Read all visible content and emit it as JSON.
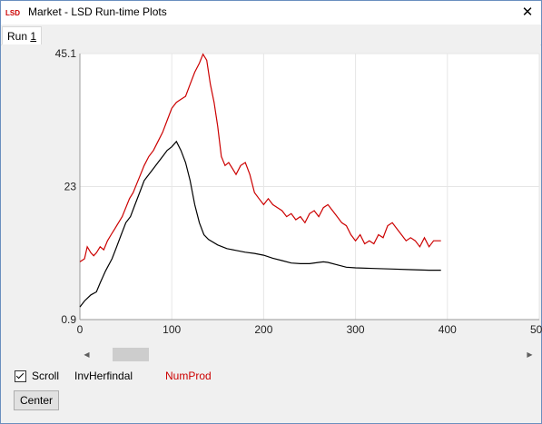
{
  "window": {
    "title": "Market - LSD Run-time Plots",
    "close_symbol": "✕"
  },
  "tabs": [
    {
      "label": "Run 1",
      "label_prefix": "Run ",
      "mnemonic": "1"
    }
  ],
  "controls": {
    "scroll_label": "Scroll",
    "scroll_checked": true,
    "center_label": "Center"
  },
  "legend": [
    {
      "name": "InvHerfindal",
      "color": "#000000"
    },
    {
      "name": "NumProd",
      "color": "#cc0000"
    }
  ],
  "colors": {
    "accent_red": "#cc0000",
    "line_black": "#000000",
    "grid": "#e6e6e6"
  },
  "chart_data": {
    "type": "line",
    "title": "",
    "xlabel": "",
    "ylabel": "",
    "xlim": [
      0,
      500
    ],
    "ylim": [
      0.9,
      45.1
    ],
    "xticks": [
      0,
      100,
      200,
      300,
      400,
      500
    ],
    "xtick_labels": [
      "0",
      "100",
      "200",
      "300",
      "400",
      "500"
    ],
    "yticks": [
      0.9,
      23,
      45.1
    ],
    "ytick_labels": [
      "0.9",
      "23",
      "45.1"
    ],
    "grid": true,
    "series": [
      {
        "name": "InvHerfindal",
        "color": "#000000",
        "points": [
          [
            0,
            3
          ],
          [
            5,
            4
          ],
          [
            12,
            5
          ],
          [
            18,
            5.5
          ],
          [
            22,
            7
          ],
          [
            28,
            9
          ],
          [
            35,
            11
          ],
          [
            40,
            13
          ],
          [
            45,
            15
          ],
          [
            50,
            17
          ],
          [
            55,
            18
          ],
          [
            60,
            20
          ],
          [
            65,
            22
          ],
          [
            70,
            24
          ],
          [
            75,
            25
          ],
          [
            80,
            26
          ],
          [
            85,
            27
          ],
          [
            90,
            28
          ],
          [
            95,
            29
          ],
          [
            100,
            29.6
          ],
          [
            105,
            30.5
          ],
          [
            110,
            29
          ],
          [
            115,
            27
          ],
          [
            120,
            24
          ],
          [
            125,
            20
          ],
          [
            130,
            17
          ],
          [
            135,
            15
          ],
          [
            140,
            14.2
          ],
          [
            150,
            13.3
          ],
          [
            160,
            12.7
          ],
          [
            170,
            12.4
          ],
          [
            180,
            12.1
          ],
          [
            190,
            11.9
          ],
          [
            200,
            11.6
          ],
          [
            210,
            11.1
          ],
          [
            220,
            10.7
          ],
          [
            230,
            10.3
          ],
          [
            240,
            10.2
          ],
          [
            250,
            10.2
          ],
          [
            260,
            10.4
          ],
          [
            265,
            10.5
          ],
          [
            270,
            10.4
          ],
          [
            280,
            10
          ],
          [
            290,
            9.6
          ],
          [
            300,
            9.5
          ],
          [
            320,
            9.4
          ],
          [
            340,
            9.3
          ],
          [
            360,
            9.2
          ],
          [
            380,
            9.1
          ],
          [
            393,
            9.1
          ]
        ]
      },
      {
        "name": "NumProd",
        "color": "#cc0000",
        "points": [
          [
            0,
            10.5
          ],
          [
            5,
            11
          ],
          [
            8,
            13
          ],
          [
            12,
            12
          ],
          [
            15,
            11.5
          ],
          [
            18,
            12
          ],
          [
            22,
            13
          ],
          [
            26,
            12.5
          ],
          [
            30,
            14
          ],
          [
            34,
            15
          ],
          [
            38,
            16
          ],
          [
            42,
            17
          ],
          [
            46,
            18
          ],
          [
            50,
            19.5
          ],
          [
            54,
            21
          ],
          [
            58,
            22
          ],
          [
            62,
            23.5
          ],
          [
            66,
            25
          ],
          [
            70,
            26.5
          ],
          [
            75,
            28
          ],
          [
            80,
            29
          ],
          [
            85,
            30.5
          ],
          [
            90,
            32
          ],
          [
            95,
            34
          ],
          [
            100,
            36
          ],
          [
            105,
            37
          ],
          [
            110,
            37.5
          ],
          [
            115,
            38
          ],
          [
            120,
            40
          ],
          [
            125,
            42
          ],
          [
            130,
            43.5
          ],
          [
            134,
            45
          ],
          [
            138,
            44
          ],
          [
            142,
            40
          ],
          [
            146,
            37
          ],
          [
            150,
            33
          ],
          [
            154,
            28
          ],
          [
            158,
            26.5
          ],
          [
            162,
            27
          ],
          [
            166,
            26
          ],
          [
            170,
            25
          ],
          [
            175,
            26.5
          ],
          [
            180,
            27
          ],
          [
            185,
            25
          ],
          [
            190,
            22
          ],
          [
            195,
            21
          ],
          [
            200,
            20
          ],
          [
            205,
            21
          ],
          [
            210,
            20
          ],
          [
            215,
            19.5
          ],
          [
            220,
            19
          ],
          [
            225,
            18
          ],
          [
            230,
            18.5
          ],
          [
            235,
            17.5
          ],
          [
            240,
            18
          ],
          [
            245,
            17
          ],
          [
            250,
            18.5
          ],
          [
            255,
            19
          ],
          [
            260,
            18
          ],
          [
            265,
            19.5
          ],
          [
            270,
            20
          ],
          [
            275,
            19
          ],
          [
            280,
            18
          ],
          [
            285,
            17
          ],
          [
            290,
            16.5
          ],
          [
            295,
            15
          ],
          [
            300,
            14
          ],
          [
            305,
            15
          ],
          [
            310,
            13.5
          ],
          [
            315,
            14
          ],
          [
            320,
            13.5
          ],
          [
            325,
            15
          ],
          [
            330,
            14.5
          ],
          [
            335,
            16.5
          ],
          [
            340,
            17
          ],
          [
            345,
            16
          ],
          [
            350,
            15
          ],
          [
            355,
            14
          ],
          [
            360,
            14.5
          ],
          [
            365,
            14
          ],
          [
            370,
            13
          ],
          [
            375,
            14.5
          ],
          [
            380,
            13
          ],
          [
            385,
            14
          ],
          [
            390,
            14
          ],
          [
            393,
            14
          ]
        ]
      }
    ]
  }
}
